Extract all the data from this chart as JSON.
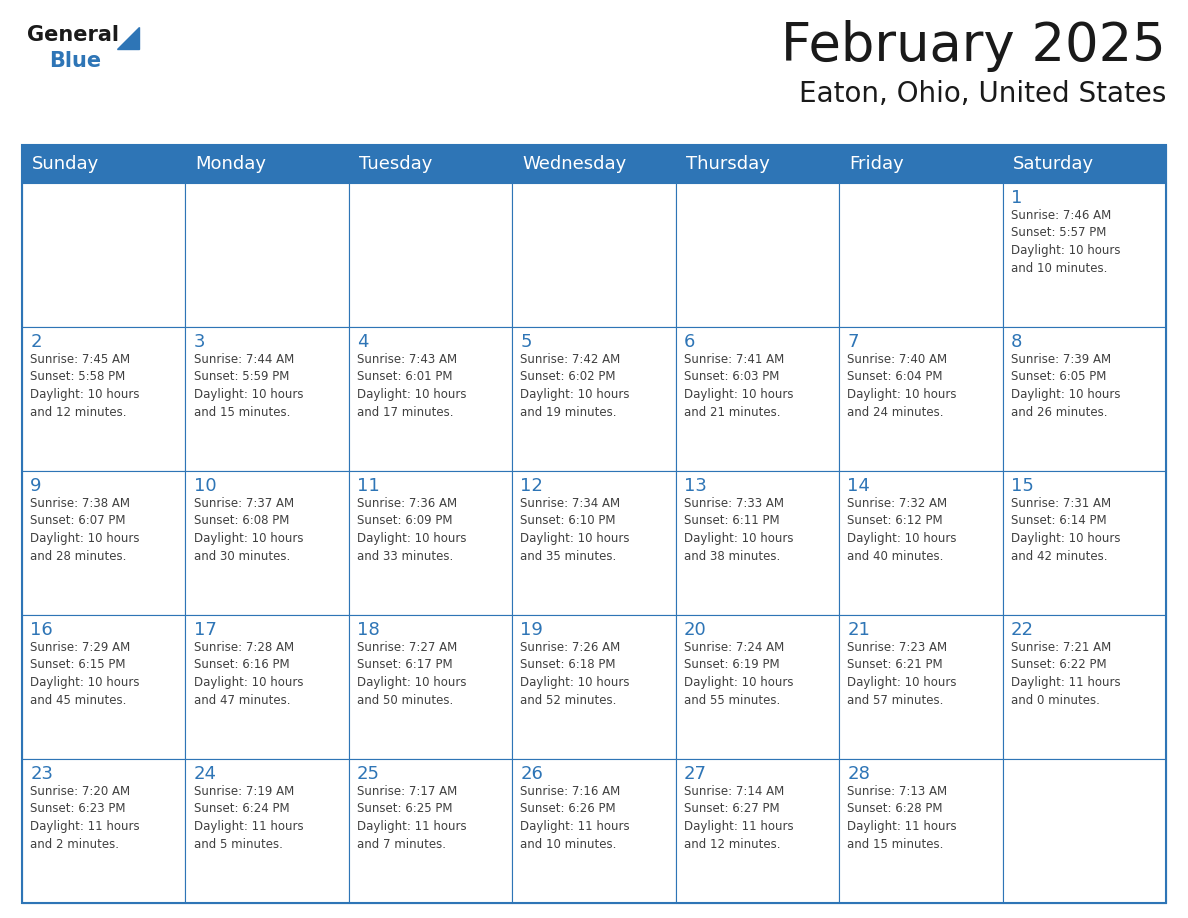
{
  "title": "February 2025",
  "subtitle": "Eaton, Ohio, United States",
  "days_of_week": [
    "Sunday",
    "Monday",
    "Tuesday",
    "Wednesday",
    "Thursday",
    "Friday",
    "Saturday"
  ],
  "header_bg": "#2e75b6",
  "header_text": "#ffffff",
  "cell_bg": "#ffffff",
  "cell_bg_light": "#f2f2f2",
  "day_number_color": "#2e75b6",
  "info_text_color": "#404040",
  "border_color": "#2e75b6",
  "title_color": "#1a1a1a",
  "subtitle_color": "#1a1a1a",
  "logo_general_color": "#1a1a1a",
  "logo_blue_color": "#2e75b6",
  "weeks": [
    [
      {
        "day": "",
        "info": ""
      },
      {
        "day": "",
        "info": ""
      },
      {
        "day": "",
        "info": ""
      },
      {
        "day": "",
        "info": ""
      },
      {
        "day": "",
        "info": ""
      },
      {
        "day": "",
        "info": ""
      },
      {
        "day": "1",
        "info": "Sunrise: 7:46 AM\nSunset: 5:57 PM\nDaylight: 10 hours\nand 10 minutes."
      }
    ],
    [
      {
        "day": "2",
        "info": "Sunrise: 7:45 AM\nSunset: 5:58 PM\nDaylight: 10 hours\nand 12 minutes."
      },
      {
        "day": "3",
        "info": "Sunrise: 7:44 AM\nSunset: 5:59 PM\nDaylight: 10 hours\nand 15 minutes."
      },
      {
        "day": "4",
        "info": "Sunrise: 7:43 AM\nSunset: 6:01 PM\nDaylight: 10 hours\nand 17 minutes."
      },
      {
        "day": "5",
        "info": "Sunrise: 7:42 AM\nSunset: 6:02 PM\nDaylight: 10 hours\nand 19 minutes."
      },
      {
        "day": "6",
        "info": "Sunrise: 7:41 AM\nSunset: 6:03 PM\nDaylight: 10 hours\nand 21 minutes."
      },
      {
        "day": "7",
        "info": "Sunrise: 7:40 AM\nSunset: 6:04 PM\nDaylight: 10 hours\nand 24 minutes."
      },
      {
        "day": "8",
        "info": "Sunrise: 7:39 AM\nSunset: 6:05 PM\nDaylight: 10 hours\nand 26 minutes."
      }
    ],
    [
      {
        "day": "9",
        "info": "Sunrise: 7:38 AM\nSunset: 6:07 PM\nDaylight: 10 hours\nand 28 minutes."
      },
      {
        "day": "10",
        "info": "Sunrise: 7:37 AM\nSunset: 6:08 PM\nDaylight: 10 hours\nand 30 minutes."
      },
      {
        "day": "11",
        "info": "Sunrise: 7:36 AM\nSunset: 6:09 PM\nDaylight: 10 hours\nand 33 minutes."
      },
      {
        "day": "12",
        "info": "Sunrise: 7:34 AM\nSunset: 6:10 PM\nDaylight: 10 hours\nand 35 minutes."
      },
      {
        "day": "13",
        "info": "Sunrise: 7:33 AM\nSunset: 6:11 PM\nDaylight: 10 hours\nand 38 minutes."
      },
      {
        "day": "14",
        "info": "Sunrise: 7:32 AM\nSunset: 6:12 PM\nDaylight: 10 hours\nand 40 minutes."
      },
      {
        "day": "15",
        "info": "Sunrise: 7:31 AM\nSunset: 6:14 PM\nDaylight: 10 hours\nand 42 minutes."
      }
    ],
    [
      {
        "day": "16",
        "info": "Sunrise: 7:29 AM\nSunset: 6:15 PM\nDaylight: 10 hours\nand 45 minutes."
      },
      {
        "day": "17",
        "info": "Sunrise: 7:28 AM\nSunset: 6:16 PM\nDaylight: 10 hours\nand 47 minutes."
      },
      {
        "day": "18",
        "info": "Sunrise: 7:27 AM\nSunset: 6:17 PM\nDaylight: 10 hours\nand 50 minutes."
      },
      {
        "day": "19",
        "info": "Sunrise: 7:26 AM\nSunset: 6:18 PM\nDaylight: 10 hours\nand 52 minutes."
      },
      {
        "day": "20",
        "info": "Sunrise: 7:24 AM\nSunset: 6:19 PM\nDaylight: 10 hours\nand 55 minutes."
      },
      {
        "day": "21",
        "info": "Sunrise: 7:23 AM\nSunset: 6:21 PM\nDaylight: 10 hours\nand 57 minutes."
      },
      {
        "day": "22",
        "info": "Sunrise: 7:21 AM\nSunset: 6:22 PM\nDaylight: 11 hours\nand 0 minutes."
      }
    ],
    [
      {
        "day": "23",
        "info": "Sunrise: 7:20 AM\nSunset: 6:23 PM\nDaylight: 11 hours\nand 2 minutes."
      },
      {
        "day": "24",
        "info": "Sunrise: 7:19 AM\nSunset: 6:24 PM\nDaylight: 11 hours\nand 5 minutes."
      },
      {
        "day": "25",
        "info": "Sunrise: 7:17 AM\nSunset: 6:25 PM\nDaylight: 11 hours\nand 7 minutes."
      },
      {
        "day": "26",
        "info": "Sunrise: 7:16 AM\nSunset: 6:26 PM\nDaylight: 11 hours\nand 10 minutes."
      },
      {
        "day": "27",
        "info": "Sunrise: 7:14 AM\nSunset: 6:27 PM\nDaylight: 11 hours\nand 12 minutes."
      },
      {
        "day": "28",
        "info": "Sunrise: 7:13 AM\nSunset: 6:28 PM\nDaylight: 11 hours\nand 15 minutes."
      },
      {
        "day": "",
        "info": ""
      }
    ]
  ]
}
